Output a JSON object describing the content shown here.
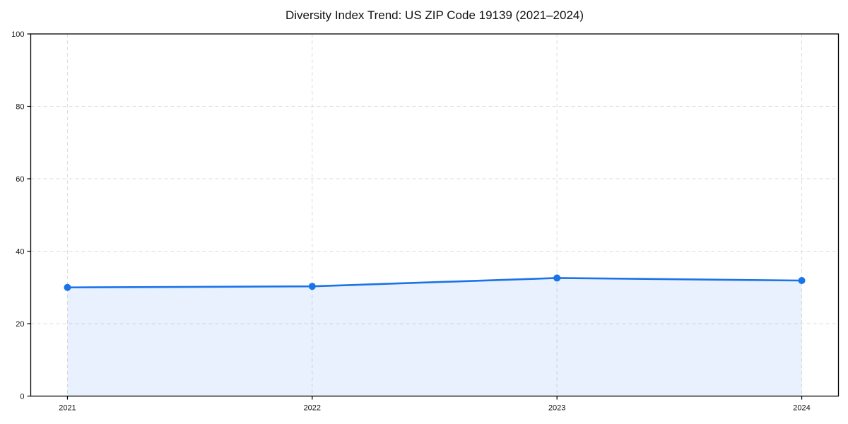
{
  "chart_data": {
    "type": "area",
    "title": "Diversity Index Trend: US ZIP Code 19139 (2021–2024)",
    "x": [
      2021,
      2022,
      2023,
      2024
    ],
    "values": [
      30.0,
      30.3,
      32.6,
      31.9
    ],
    "series_label": "Diversity Index",
    "xlabel": "",
    "ylabel": "",
    "xlim": [
      2020.85,
      2024.15
    ],
    "ylim": [
      0,
      100
    ],
    "xticks": [
      2021,
      2022,
      2023,
      2024
    ],
    "yticks": [
      0,
      20,
      40,
      60,
      80,
      100
    ],
    "grid": true,
    "grid_style": "dashed",
    "legend_position": "none",
    "marker": "circle",
    "colors": {
      "line": "#1a73e8",
      "fill": "rgba(26,115,232,0.10)",
      "grid": "#dcdcdc",
      "axis": "#000000",
      "text": "#111111",
      "background": "#ffffff"
    }
  }
}
